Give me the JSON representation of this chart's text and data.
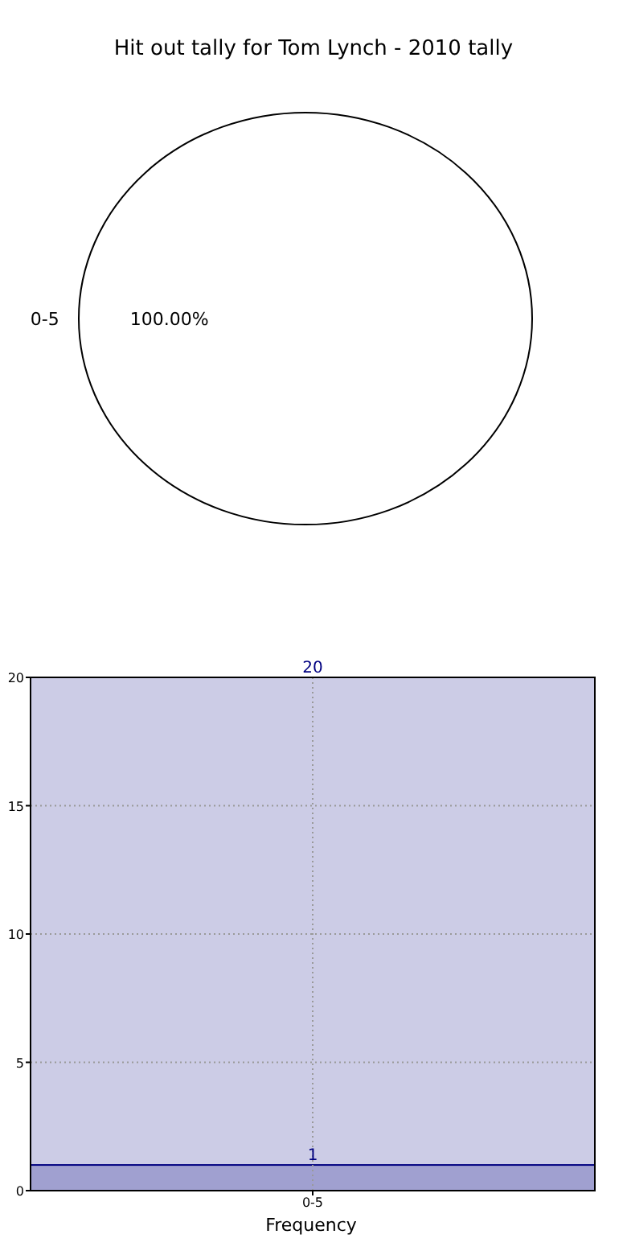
{
  "chart_data": [
    {
      "type": "pie",
      "title": "Hit out tally for Tom Lynch - 2010 tally",
      "categories": [
        "0-5"
      ],
      "values": [
        100
      ],
      "colors": [
        "#ffffff"
      ],
      "value_labels": [
        "100.00%"
      ]
    },
    {
      "type": "bar",
      "xlabel": "Frequency",
      "categories": [
        "0-5"
      ],
      "series": [
        {
          "color": "#a0a0d0",
          "values": [
            1
          ]
        }
      ],
      "bands": [
        {
          "axis": "y",
          "from": 0,
          "to": 20,
          "color": "#cccce6"
        }
      ],
      "annotations": [
        {
          "text": "20",
          "x": "0-5",
          "y": 20
        }
      ],
      "ylim": [
        0,
        20
      ],
      "yticks": [
        0,
        5,
        10,
        15,
        20
      ],
      "grid": true,
      "data_labels": true
    }
  ]
}
